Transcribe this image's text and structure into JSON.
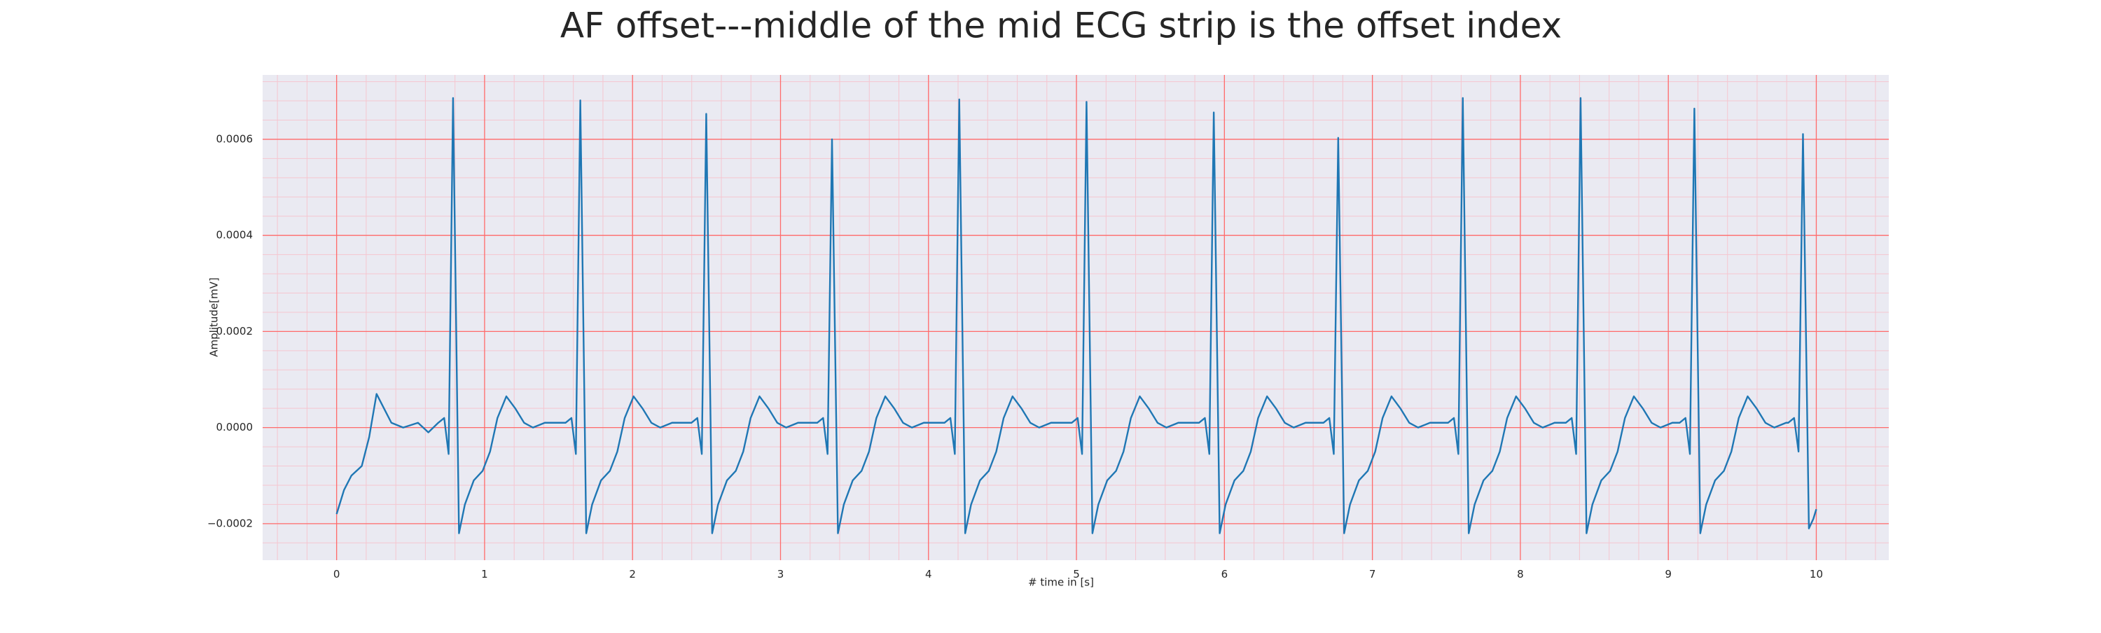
{
  "chart_data": {
    "type": "line",
    "title": "AF offset---middle of the mid ECG strip is the offset index",
    "xlabel": "# time in [s]",
    "ylabel": "Amplitude[mV]",
    "xlim": [
      -0.5,
      10.49
    ],
    "ylim": [
      -0.000276,
      0.000734
    ],
    "xticks": [
      0,
      1,
      2,
      3,
      4,
      5,
      6,
      7,
      8,
      9,
      10
    ],
    "yticks": [
      {
        "value": -0.0002,
        "label": "−0.0002"
      },
      {
        "value": 0,
        "label": "0.0000"
      },
      {
        "value": 0.0002,
        "label": "0.0002"
      },
      {
        "value": 0.0004,
        "label": "0.0004"
      },
      {
        "value": 0.0006,
        "label": "0.0006"
      }
    ],
    "grid": true,
    "minor_grid": true,
    "grid_color": "#ff6b6b",
    "minor_grid_color": "#f5c6d0",
    "background": "#eaeaf2",
    "x": [
      0,
      0.05,
      0.1,
      0.17,
      0.22,
      0.27,
      0.32,
      0.37,
      0.45,
      0.55,
      0.62,
      0.687,
      0.727,
      0.757,
      0.787,
      0.827,
      0.867,
      0.927,
      0.987,
      1.037,
      1.087,
      1.147,
      1.207,
      1.267,
      1.327,
      1.407,
      1.547,
      1.587,
      1.617,
      1.647,
      1.687,
      1.727,
      1.787,
      1.847,
      1.897,
      1.947,
      2.007,
      2.067,
      2.127,
      2.187,
      2.267,
      2.398,
      2.438,
      2.468,
      2.498,
      2.538,
      2.578,
      2.638,
      2.698,
      2.748,
      2.798,
      2.858,
      2.918,
      2.978,
      3.038,
      3.118,
      3.248,
      3.288,
      3.318,
      3.348,
      3.388,
      3.428,
      3.488,
      3.548,
      3.598,
      3.648,
      3.708,
      3.768,
      3.828,
      3.888,
      3.968,
      4.108,
      4.148,
      4.178,
      4.208,
      4.248,
      4.288,
      4.348,
      4.408,
      4.458,
      4.508,
      4.568,
      4.628,
      4.688,
      4.748,
      4.828,
      4.968,
      5.008,
      5.038,
      5.068,
      5.108,
      5.148,
      5.208,
      5.268,
      5.318,
      5.368,
      5.428,
      5.488,
      5.548,
      5.608,
      5.688,
      5.828,
      5.868,
      5.898,
      5.928,
      5.968,
      6.008,
      6.068,
      6.128,
      6.178,
      6.228,
      6.288,
      6.348,
      6.408,
      6.468,
      6.548,
      6.669,
      6.709,
      6.739,
      6.769,
      6.809,
      6.849,
      6.909,
      6.969,
      7.019,
      7.069,
      7.129,
      7.189,
      7.249,
      7.309,
      7.389,
      7.511,
      7.551,
      7.581,
      7.611,
      7.651,
      7.691,
      7.751,
      7.811,
      7.861,
      7.911,
      7.971,
      8.031,
      8.091,
      8.151,
      8.231,
      8.307,
      8.347,
      8.377,
      8.407,
      8.447,
      8.487,
      8.547,
      8.607,
      8.657,
      8.707,
      8.767,
      8.827,
      8.887,
      8.947,
      9.027,
      9.076,
      9.116,
      9.146,
      9.176,
      9.216,
      9.256,
      9.316,
      9.376,
      9.426,
      9.476,
      9.536,
      9.596,
      9.656,
      9.716,
      9.796,
      9.81,
      9.85,
      9.88,
      9.91,
      9.95,
      9.98,
      10.0
    ],
    "series": [
      {
        "color": "#1f77b4",
        "values": [
          -0.00018,
          -0.00013,
          -0.0001,
          -8e-05,
          -2e-05,
          7e-05,
          4e-05,
          1e-05,
          0,
          1e-05,
          -1e-05,
          1e-05,
          2e-05,
          -5.5e-05,
          0.000686,
          -0.00022,
          -0.00016,
          -0.00011,
          -9e-05,
          -5e-05,
          2e-05,
          6.5e-05,
          4e-05,
          1e-05,
          0,
          1e-05,
          1e-05,
          2e-05,
          -5.5e-05,
          0.000681,
          -0.00022,
          -0.00016,
          -0.00011,
          -9e-05,
          -5e-05,
          2e-05,
          6.5e-05,
          4e-05,
          1e-05,
          0,
          1e-05,
          1e-05,
          2e-05,
          -5.5e-05,
          0.000653,
          -0.00022,
          -0.00016,
          -0.00011,
          -9e-05,
          -5e-05,
          2e-05,
          6.5e-05,
          4e-05,
          1e-05,
          0,
          1e-05,
          1e-05,
          2e-05,
          -5.5e-05,
          0.0006,
          -0.00022,
          -0.00016,
          -0.00011,
          -9e-05,
          -5e-05,
          2e-05,
          6.5e-05,
          4e-05,
          1e-05,
          0,
          1e-05,
          1e-05,
          2e-05,
          -5.5e-05,
          0.000683,
          -0.00022,
          -0.00016,
          -0.00011,
          -9e-05,
          -5e-05,
          2e-05,
          6.5e-05,
          4e-05,
          1e-05,
          0,
          1e-05,
          1e-05,
          2e-05,
          -5.5e-05,
          0.000678,
          -0.00022,
          -0.00016,
          -0.00011,
          -9e-05,
          -5e-05,
          2e-05,
          6.5e-05,
          4e-05,
          1e-05,
          0,
          1e-05,
          1e-05,
          2e-05,
          -5.5e-05,
          0.000656,
          -0.00022,
          -0.00016,
          -0.00011,
          -9e-05,
          -5e-05,
          2e-05,
          6.5e-05,
          4e-05,
          1e-05,
          0,
          1e-05,
          1e-05,
          2e-05,
          -5.5e-05,
          0.000603,
          -0.00022,
          -0.00016,
          -0.00011,
          -9e-05,
          -5e-05,
          2e-05,
          6.5e-05,
          4e-05,
          1e-05,
          0,
          1e-05,
          1e-05,
          2e-05,
          -5.5e-05,
          0.000686,
          -0.00022,
          -0.00016,
          -0.00011,
          -9e-05,
          -5e-05,
          2e-05,
          6.5e-05,
          4e-05,
          1e-05,
          0,
          1e-05,
          1e-05,
          2e-05,
          -5.5e-05,
          0.000686,
          -0.00022,
          -0.00016,
          -0.00011,
          -9e-05,
          -5e-05,
          2e-05,
          6.5e-05,
          4e-05,
          1e-05,
          0,
          1e-05,
          1e-05,
          2e-05,
          -5.5e-05,
          0.000664,
          -0.00022,
          -0.00016,
          -0.00011,
          -9e-05,
          -5e-05,
          2e-05,
          6.5e-05,
          4e-05,
          1e-05,
          0,
          1e-05,
          1e-05,
          2e-05,
          -5e-05,
          0.000611,
          -0.00021,
          -0.00019,
          -0.00017
        ]
      }
    ]
  }
}
